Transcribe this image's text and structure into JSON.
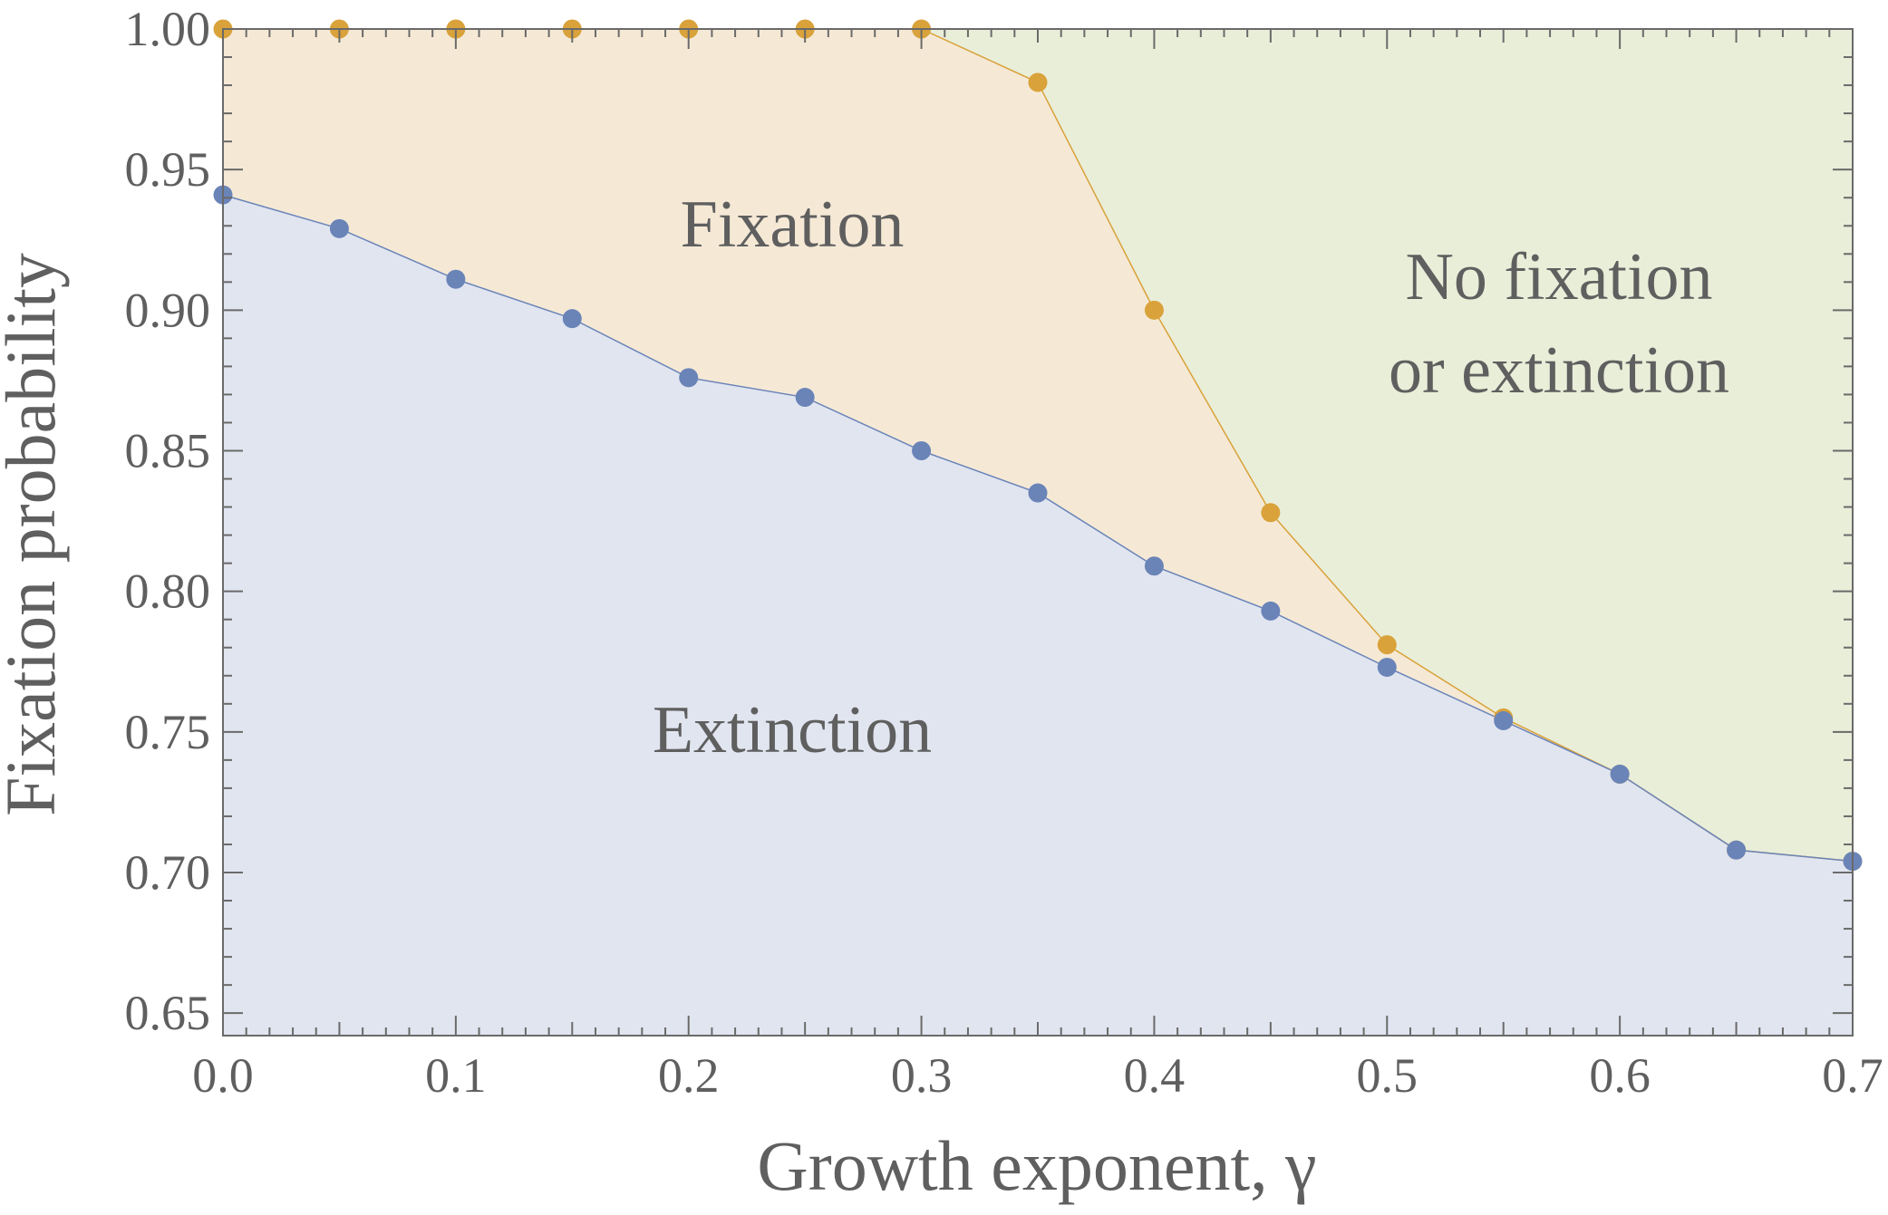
{
  "chart_data": {
    "type": "area",
    "xlabel": "Growth exponent, γ",
    "ylabel": "Fixation probability",
    "xlim": [
      0.0,
      0.7
    ],
    "ylim": [
      0.642,
      1.0
    ],
    "xticks": [
      "0.0",
      "0.1",
      "0.2",
      "0.3",
      "0.4",
      "0.5",
      "0.6",
      "0.7"
    ],
    "yticks": [
      "0.65",
      "0.70",
      "0.75",
      "0.80",
      "0.85",
      "0.90",
      "0.95",
      "1.00"
    ],
    "grid": false,
    "x": [
      0.0,
      0.05,
      0.1,
      0.15,
      0.2,
      0.25,
      0.3,
      0.35,
      0.4,
      0.45,
      0.5,
      0.55,
      0.6,
      0.65,
      0.7
    ],
    "series": [
      {
        "color": "#6a84b8",
        "values": [
          0.941,
          0.929,
          0.911,
          0.897,
          0.876,
          0.869,
          0.85,
          0.835,
          0.809,
          0.793,
          0.773,
          0.754,
          0.735,
          0.708,
          0.704
        ]
      },
      {
        "color": "#d9a23a",
        "values": [
          1.0,
          1.0,
          1.0,
          1.0,
          1.0,
          1.0,
          1.0,
          0.981,
          0.9,
          0.828,
          0.781,
          0.755,
          0.735,
          0.708,
          0.704
        ]
      }
    ],
    "regions": [
      {
        "label": "Extinction",
        "color": "#e1e5f0"
      },
      {
        "label": "Fixation",
        "color": "#f5e9d6"
      },
      {
        "label_line1": "No fixation",
        "label_line2": "or extinction",
        "color": "#e9eed9"
      }
    ]
  }
}
